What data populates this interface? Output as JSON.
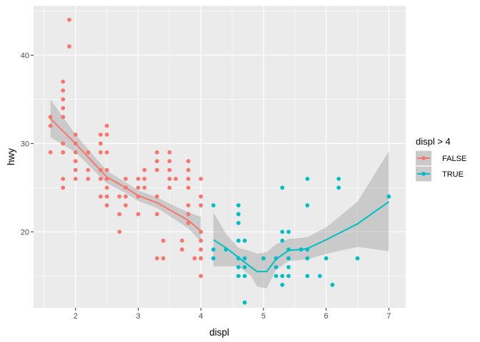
{
  "chart_data": {
    "type": "scatter",
    "title": "",
    "xlabel": "displ",
    "ylabel": "hwy",
    "xlim": [
      1.33,
      7.27
    ],
    "ylim": [
      11.4,
      45.6
    ],
    "xticks": [
      2,
      3,
      4,
      5,
      6,
      7
    ],
    "yticks": [
      20,
      30,
      40
    ],
    "grid": true,
    "legend": {
      "title": "displ > 4",
      "placement": "right",
      "entries": [
        {
          "label": "FALSE",
          "color": "#F8766D"
        },
        {
          "label": "TRUE",
          "color": "#00BFC4"
        }
      ]
    },
    "series": [
      {
        "name": "FALSE",
        "color": "#F8766D",
        "points": [
          [
            1.9,
            44
          ],
          [
            1.9,
            41
          ],
          [
            1.8,
            37
          ],
          [
            1.8,
            36
          ],
          [
            1.8,
            35
          ],
          [
            1.8,
            34
          ],
          [
            1.8,
            33
          ],
          [
            1.6,
            33
          ],
          [
            1.6,
            32
          ],
          [
            2.5,
            32
          ],
          [
            2.0,
            31
          ],
          [
            2.4,
            31
          ],
          [
            2.5,
            31
          ],
          [
            1.8,
            30
          ],
          [
            2.0,
            30
          ],
          [
            2.4,
            30
          ],
          [
            1.6,
            29
          ],
          [
            1.8,
            29
          ],
          [
            2.0,
            29
          ],
          [
            2.2,
            29
          ],
          [
            2.4,
            29
          ],
          [
            2.5,
            29
          ],
          [
            3.3,
            29
          ],
          [
            3.5,
            29
          ],
          [
            2.0,
            28
          ],
          [
            3.3,
            28
          ],
          [
            3.5,
            28
          ],
          [
            3.8,
            28
          ],
          [
            2.0,
            27
          ],
          [
            2.2,
            27
          ],
          [
            2.4,
            27
          ],
          [
            2.5,
            27
          ],
          [
            3.1,
            27
          ],
          [
            3.3,
            27
          ],
          [
            3.5,
            27
          ],
          [
            3.8,
            27
          ],
          [
            1.8,
            26
          ],
          [
            2.0,
            26
          ],
          [
            2.2,
            26
          ],
          [
            2.4,
            26
          ],
          [
            2.5,
            26
          ],
          [
            2.8,
            26
          ],
          [
            3.0,
            26
          ],
          [
            3.1,
            26
          ],
          [
            3.5,
            26
          ],
          [
            3.6,
            26
          ],
          [
            3.8,
            26
          ],
          [
            4.0,
            26
          ],
          [
            1.8,
            25
          ],
          [
            2.5,
            25
          ],
          [
            2.8,
            25
          ],
          [
            3.0,
            25
          ],
          [
            3.1,
            25
          ],
          [
            3.5,
            25
          ],
          [
            3.8,
            25
          ],
          [
            2.4,
            24
          ],
          [
            2.5,
            24
          ],
          [
            2.7,
            24
          ],
          [
            2.8,
            24
          ],
          [
            3.0,
            24
          ],
          [
            3.3,
            24
          ],
          [
            4.0,
            24
          ],
          [
            2.5,
            23
          ],
          [
            2.8,
            23
          ],
          [
            3.8,
            23
          ],
          [
            4.0,
            23
          ],
          [
            2.7,
            22
          ],
          [
            3.0,
            22
          ],
          [
            3.3,
            22
          ],
          [
            3.8,
            22
          ],
          [
            3.8,
            21
          ],
          [
            2.7,
            20
          ],
          [
            4.0,
            20
          ],
          [
            3.4,
            19
          ],
          [
            3.7,
            19
          ],
          [
            4.0,
            19
          ],
          [
            3.7,
            18
          ],
          [
            4.0,
            18
          ],
          [
            3.3,
            17
          ],
          [
            3.4,
            17
          ],
          [
            3.9,
            17
          ],
          [
            4.0,
            17
          ],
          [
            4.0,
            15
          ]
        ],
        "smooth": {
          "x": [
            1.6,
            2.0,
            2.5,
            2.8,
            3.0,
            3.3,
            3.5,
            3.8,
            4.0
          ],
          "y": [
            32.8,
            30.0,
            26.2,
            25.0,
            24.1,
            23.3,
            22.5,
            21.3,
            20.1
          ],
          "lower": [
            30.7,
            29.0,
            25.5,
            24.4,
            23.5,
            22.7,
            21.8,
            20.4,
            18.9
          ],
          "upper": [
            35.0,
            31.0,
            26.9,
            25.6,
            24.7,
            23.9,
            23.2,
            22.2,
            21.7
          ]
        }
      },
      {
        "name": "TRUE",
        "color": "#00BFC4",
        "points": [
          [
            5.7,
            26
          ],
          [
            6.2,
            26
          ],
          [
            5.3,
            25
          ],
          [
            6.2,
            25
          ],
          [
            7.0,
            24
          ],
          [
            4.2,
            23
          ],
          [
            4.6,
            23
          ],
          [
            5.7,
            23
          ],
          [
            4.6,
            22
          ],
          [
            4.6,
            21
          ],
          [
            5.3,
            20
          ],
          [
            5.4,
            20
          ],
          [
            4.6,
            19
          ],
          [
            4.7,
            19
          ],
          [
            5.3,
            19
          ],
          [
            4.2,
            18
          ],
          [
            4.4,
            18
          ],
          [
            5.4,
            18
          ],
          [
            5.6,
            18
          ],
          [
            5.7,
            18
          ],
          [
            4.2,
            17
          ],
          [
            4.6,
            17
          ],
          [
            4.7,
            17
          ],
          [
            5.0,
            17
          ],
          [
            5.2,
            17
          ],
          [
            5.4,
            17
          ],
          [
            5.7,
            17
          ],
          [
            6.0,
            17
          ],
          [
            6.5,
            17
          ],
          [
            4.6,
            16
          ],
          [
            4.7,
            16
          ],
          [
            5.2,
            16
          ],
          [
            5.4,
            16
          ],
          [
            4.6,
            15
          ],
          [
            4.7,
            15
          ],
          [
            5.2,
            15
          ],
          [
            5.3,
            15
          ],
          [
            5.4,
            15
          ],
          [
            5.7,
            15
          ],
          [
            5.9,
            15
          ],
          [
            5.3,
            14
          ],
          [
            6.1,
            14
          ],
          [
            4.7,
            12
          ]
        ],
        "smooth": {
          "x": [
            4.2,
            4.4,
            4.6,
            4.8,
            4.9,
            5.05,
            5.2,
            5.4,
            5.6,
            5.7,
            6.0,
            6.5,
            7.0
          ],
          "y": [
            19.1,
            18.2,
            17.1,
            16.0,
            15.5,
            15.5,
            16.9,
            17.9,
            18.0,
            18.1,
            19.1,
            20.9,
            23.4
          ],
          "lower": [
            16.1,
            16.1,
            16.1,
            15.0,
            13.8,
            13.6,
            15.7,
            16.7,
            16.8,
            16.9,
            17.5,
            18.3,
            17.8
          ],
          "upper": [
            22.2,
            19.8,
            18.2,
            17.8,
            17.5,
            17.7,
            18.6,
            19.2,
            19.3,
            19.4,
            20.5,
            23.4,
            29.1
          ]
        }
      }
    ]
  }
}
